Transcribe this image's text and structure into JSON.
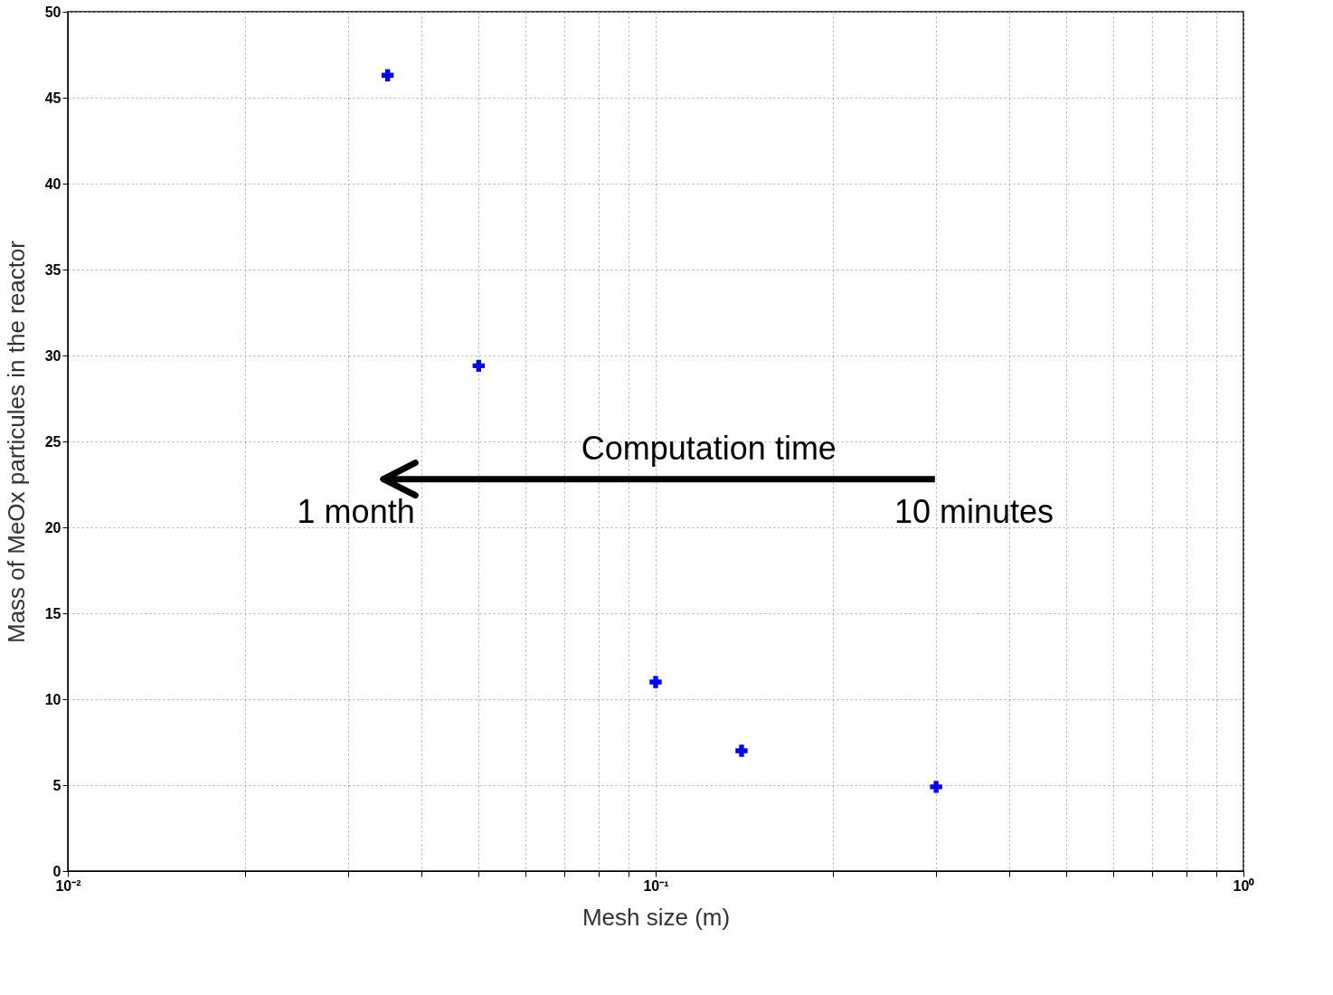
{
  "chart_data": {
    "type": "scatter",
    "xlabel": "Mesh size (m)",
    "ylabel": "Mass of MeOx particules in the reactor",
    "x": [
      0.035,
      0.05,
      0.1,
      0.14,
      0.3
    ],
    "series": [
      {
        "color": "#0000ff",
        "values": [
          46.3,
          29.4,
          11.0,
          7.0,
          4.9
        ]
      }
    ],
    "log": "x",
    "marker": "cross",
    "grid": true,
    "xlim": [
      0.01,
      1
    ],
    "ylim": [
      0,
      50
    ],
    "xticks": [
      {
        "value": 0.01,
        "label": "10⁻²"
      },
      {
        "value": 0.02,
        "label": null
      },
      {
        "value": 0.03,
        "label": null
      },
      {
        "value": 0.04,
        "label": null
      },
      {
        "value": 0.05,
        "label": null
      },
      {
        "value": 0.06,
        "label": null
      },
      {
        "value": 0.07,
        "label": null
      },
      {
        "value": 0.08,
        "label": null
      },
      {
        "value": 0.09,
        "label": null
      },
      {
        "value": 0.1,
        "label": "10⁻¹"
      },
      {
        "value": 0.2,
        "label": null
      },
      {
        "value": 0.3,
        "label": null
      },
      {
        "value": 0.4,
        "label": null
      },
      {
        "value": 0.5,
        "label": null
      },
      {
        "value": 0.6,
        "label": null
      },
      {
        "value": 0.7,
        "label": null
      },
      {
        "value": 0.8,
        "label": null
      },
      {
        "value": 0.9,
        "label": null
      },
      {
        "value": 1,
        "label": "10⁰"
      }
    ],
    "yticks": [
      0,
      5,
      10,
      15,
      20,
      25,
      30,
      35,
      40,
      45,
      50
    ],
    "annotations": [
      "Computation time",
      "1 month",
      "10 minutes"
    ]
  }
}
